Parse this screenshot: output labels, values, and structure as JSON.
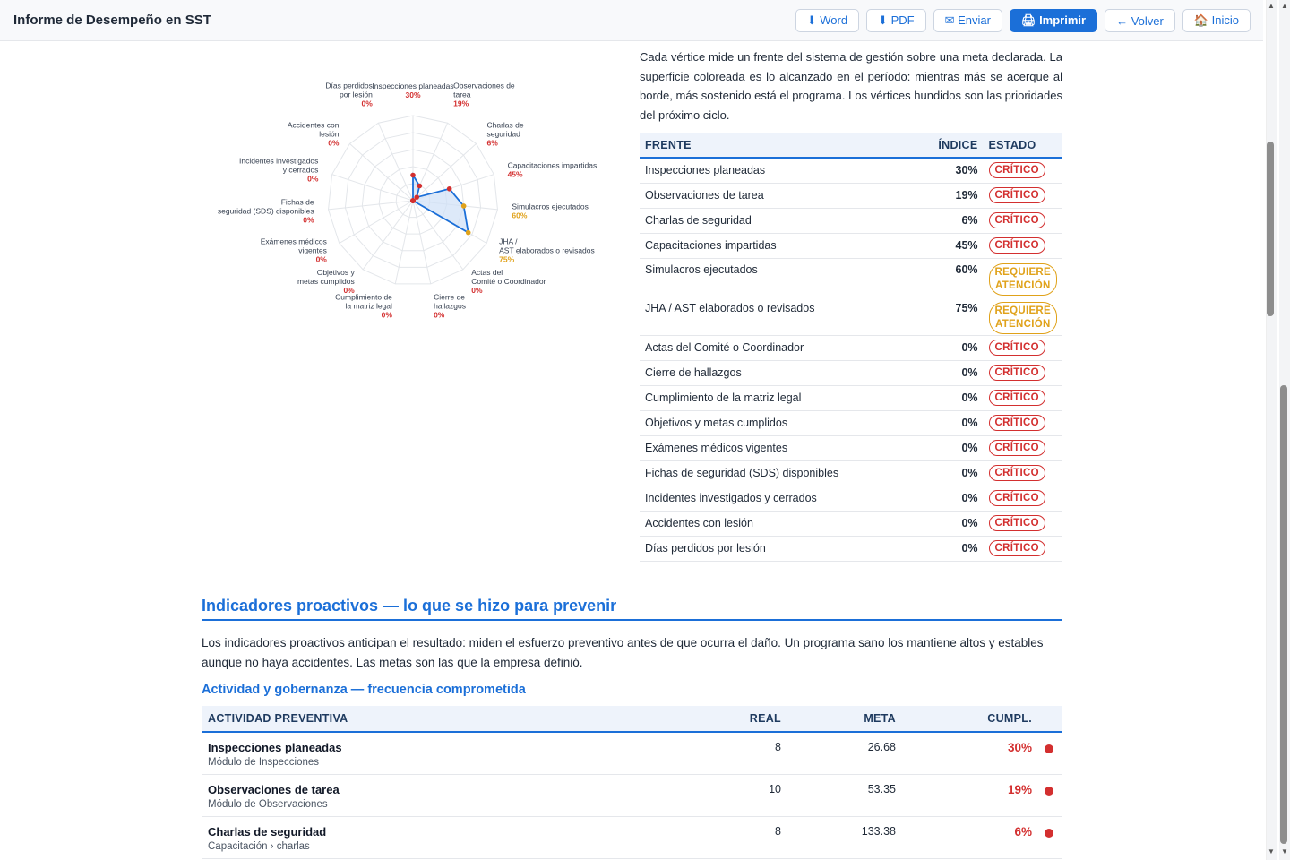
{
  "header": {
    "title": "Informe de Desempeño en SST",
    "buttons": {
      "word": "⬇ Word",
      "pdf": "⬇ PDF",
      "send": "✉ Enviar",
      "print": "🖨 Imprimir",
      "back": "← Volver",
      "home": "🏠 Inicio"
    }
  },
  "intro": "Cada vértice mide un frente del sistema de gestión sobre una meta declarada. La superficie coloreada es lo alcanzado en el período: mientras más se acerque al borde, más sostenido está el programa. Los vértices hundidos son las prioridades del próximo ciclo.",
  "frentes": {
    "headers": {
      "frente": "FRENTE",
      "indice": "ÍNDICE",
      "estado": "ESTADO"
    },
    "rows": [
      {
        "name": "Inspecciones planeadas",
        "value": "30%",
        "status": "CRÍTICO",
        "level": "critical"
      },
      {
        "name": "Observaciones de tarea",
        "value": "19%",
        "status": "CRÍTICO",
        "level": "critical"
      },
      {
        "name": "Charlas de seguridad",
        "value": "6%",
        "status": "CRÍTICO",
        "level": "critical"
      },
      {
        "name": "Capacitaciones impartidas",
        "value": "45%",
        "status": "CRÍTICO",
        "level": "critical"
      },
      {
        "name": "Simulacros ejecutados",
        "value": "60%",
        "status": "REQUIERE ATENCIÓN",
        "level": "warn"
      },
      {
        "name": "JHA / AST elaborados o revisados",
        "value": "75%",
        "status": "REQUIERE ATENCIÓN",
        "level": "warn"
      },
      {
        "name": "Actas del Comité o Coordinador",
        "value": "0%",
        "status": "CRÍTICO",
        "level": "critical"
      },
      {
        "name": "Cierre de hallazgos",
        "value": "0%",
        "status": "CRÍTICO",
        "level": "critical"
      },
      {
        "name": "Cumplimiento de la matriz legal",
        "value": "0%",
        "status": "CRÍTICO",
        "level": "critical"
      },
      {
        "name": "Objetivos y metas cumplidos",
        "value": "0%",
        "status": "CRÍTICO",
        "level": "critical"
      },
      {
        "name": "Exámenes médicos vigentes",
        "value": "0%",
        "status": "CRÍTICO",
        "level": "critical"
      },
      {
        "name": "Fichas de seguridad (SDS) disponibles",
        "value": "0%",
        "status": "CRÍTICO",
        "level": "critical"
      },
      {
        "name": "Incidentes investigados y cerrados",
        "value": "0%",
        "status": "CRÍTICO",
        "level": "critical"
      },
      {
        "name": "Accidentes con lesión",
        "value": "0%",
        "status": "CRÍTICO",
        "level": "critical"
      },
      {
        "name": "Días perdidos por lesión",
        "value": "0%",
        "status": "CRÍTICO",
        "level": "critical"
      }
    ]
  },
  "chart_data": {
    "type": "radar",
    "range": [
      0,
      100
    ],
    "categories": [
      "Inspecciones planeadas",
      "Observaciones de tarea",
      "Charlas de seguridad",
      "Capacitaciones impartidas",
      "Simulacros ejecutados",
      "JHA / AST elaborados o revisados",
      "Actas del Comité o Coordinador",
      "Cierre de hallazgos",
      "Cumplimiento de la matriz legal",
      "Objetivos y metas cumplidos",
      "Exámenes médicos vigentes",
      "Fichas de seguridad (SDS) disponibles",
      "Incidentes investigados y cerrados",
      "Accidentes con lesión",
      "Días perdidos por lesión"
    ],
    "label_lines": [
      [
        "Inspecciones planeadas"
      ],
      [
        "Observaciones de",
        "tarea"
      ],
      [
        "Charlas de",
        "seguridad"
      ],
      [
        "Capacitaciones impartidas"
      ],
      [
        "Simulacros ejecutados"
      ],
      [
        "JHA /",
        "AST elaborados o revisados"
      ],
      [
        "Actas del",
        "Comité o Coordinador"
      ],
      [
        "Cierre de",
        "hallazgos"
      ],
      [
        "Cumplimiento de",
        "la matriz legal"
      ],
      [
        "Objetivos y",
        "metas cumplidos"
      ],
      [
        "Exámenes médicos",
        "vigentes"
      ],
      [
        "Fichas de",
        "seguridad (SDS) disponibles"
      ],
      [
        "Incidentes investigados",
        "y cerrados"
      ],
      [
        "Accidentes con",
        "lesión"
      ],
      [
        "Días perdidos",
        "por lesión"
      ]
    ],
    "values": [
      30,
      19,
      6,
      45,
      60,
      75,
      0,
      0,
      0,
      0,
      0,
      0,
      0,
      0,
      0
    ],
    "value_labels": [
      "30%",
      "19%",
      "6%",
      "45%",
      "60%",
      "75%",
      "0%",
      "0%",
      "0%",
      "0%",
      "0%",
      "0%",
      "0%",
      "0%",
      "0%"
    ],
    "colors": {
      "critical": "#d32f2f",
      "warn": "#e0a21a",
      "line": "#1b6fd8",
      "fill": "#cfe0f7",
      "grid": "#e3e6ea"
    }
  },
  "section": {
    "title": "Indicadores proactivos — lo que se hizo para prevenir",
    "text": "Los indicadores proactivos anticipan el resultado: miden el esfuerzo preventivo antes de que ocurra el daño. Un programa sano los mantiene altos y estables aunque no haya accidentes. Las metas son las que la empresa definió.",
    "subtitle": "Actividad y gobernanza — frecuencia comprometida",
    "headers": {
      "activity": "ACTIVIDAD PREVENTIVA",
      "real": "REAL",
      "meta": "META",
      "cumpl": "CUMPL."
    },
    "rows": [
      {
        "name": "Inspecciones planeadas",
        "source": "Módulo de Inspecciones",
        "real": "8",
        "meta": "26.68",
        "cumpl": "30%"
      },
      {
        "name": "Observaciones de tarea",
        "source": "Módulo de Observaciones",
        "real": "10",
        "meta": "53.35",
        "cumpl": "19%"
      },
      {
        "name": "Charlas de seguridad",
        "source": "Capacitación › charlas",
        "real": "8",
        "meta": "133.38",
        "cumpl": "6%"
      }
    ]
  }
}
